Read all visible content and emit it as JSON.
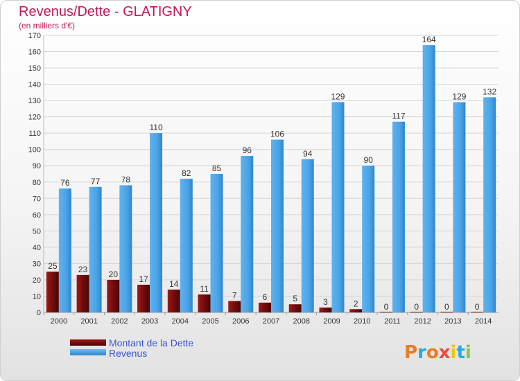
{
  "chart_data": {
    "type": "bar",
    "title": "Revenus/Dette - GLATIGNY",
    "subtitle": "(en milliers d'€)",
    "categories": [
      "2000",
      "2001",
      "2002",
      "2003",
      "2004",
      "2005",
      "2006",
      "2007",
      "2008",
      "2009",
      "2010",
      "2011",
      "2012",
      "2013",
      "2014"
    ],
    "series": [
      {
        "name": "Montant de la Dette",
        "color": "#7a1010",
        "values": [
          25,
          23,
          20,
          17,
          14,
          11,
          7,
          6,
          5,
          3,
          2,
          0,
          0,
          0,
          0
        ]
      },
      {
        "name": "Revenus",
        "color": "#4aa3e6",
        "values": [
          76,
          77,
          78,
          110,
          82,
          85,
          96,
          106,
          94,
          129,
          90,
          117,
          164,
          129,
          132
        ]
      }
    ],
    "ylim": [
      0,
      170
    ],
    "yticks": [
      0,
      10,
      20,
      30,
      40,
      50,
      60,
      70,
      80,
      90,
      100,
      110,
      120,
      130,
      140,
      150,
      160,
      170
    ],
    "grid": true,
    "legend_position": "bottom-left",
    "logo": {
      "text": "Proxiti",
      "colors": [
        "#e67e22",
        "#27a9e1",
        "#e67e22",
        "#e74c3c",
        "#f1c40f",
        "#27a9e1",
        "#8bc34a"
      ]
    }
  }
}
